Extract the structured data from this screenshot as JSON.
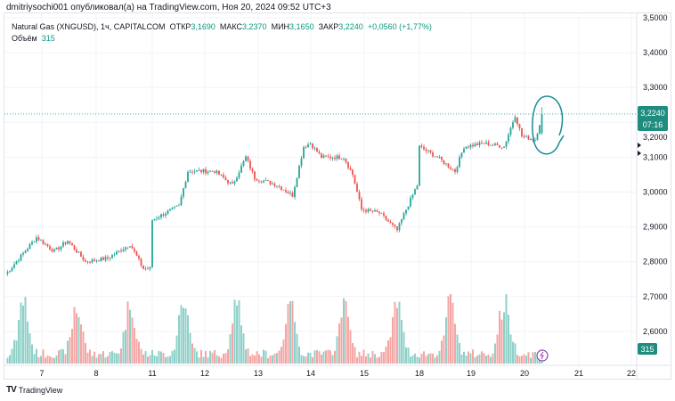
{
  "publisher_line": "dmitriysochi001 опубликовал(а) на TradingView.com, Ноя 20, 2024 09:52 UTC+3",
  "legend": {
    "symbol": "Natural Gas (XNGUSD), 1ч, CAPITALCOM",
    "open_label": "ОТКР",
    "open": "3,1690",
    "high_label": "МАКС",
    "high": "3,2370",
    "low_label": "МИН",
    "low": "3,1650",
    "close_label": "ЗАКР",
    "close": "3,2240",
    "change": "+0,0560 (+1,77%)",
    "volume_label": "Объём",
    "volume": "315"
  },
  "current_price": {
    "price": "3,2240",
    "countdown": "07:16",
    "volume_badge": "315"
  },
  "colors": {
    "up": "#26a69a",
    "down": "#ef5350",
    "up_vol": "#8fd0c8",
    "down_vol": "#f4a6a4",
    "annotation": "#1b8a9a",
    "badge": "#1e8c7e"
  },
  "footer": {
    "brand": "TradingView"
  },
  "chart_data": {
    "type": "candlestick",
    "title": "Natural Gas (XNGUSD), 1ч",
    "y_ticks": [
      "3,5000",
      "3,4000",
      "3,3000",
      "3,2000",
      "3,1000",
      "3,0000",
      "2,9000",
      "2,8000",
      "2,7000",
      "2,6000"
    ],
    "y_values": [
      3.5,
      3.4,
      3.3,
      3.2,
      3.1,
      3.0,
      2.9,
      2.8,
      2.7,
      2.6
    ],
    "x_ticks": [
      "7",
      "8",
      "11",
      "12",
      "13",
      "14",
      "15",
      "18",
      "19",
      "20",
      "21",
      "22"
    ],
    "price_path": [
      [
        1,
        2.77
      ],
      [
        14,
        2.87
      ],
      [
        22,
        2.83
      ],
      [
        28,
        2.86
      ],
      [
        36,
        2.8
      ],
      [
        46,
        2.81
      ],
      [
        56,
        2.85
      ],
      [
        62,
        2.78
      ],
      [
        65,
        2.78
      ],
      [
        66,
        2.92
      ],
      [
        78,
        2.96
      ],
      [
        82,
        3.06
      ],
      [
        94,
        3.06
      ],
      [
        102,
        3.02
      ],
      [
        108,
        3.1
      ],
      [
        112,
        3.04
      ],
      [
        122,
        3.02
      ],
      [
        129,
        2.99
      ],
      [
        134,
        3.13
      ],
      [
        137,
        3.14
      ],
      [
        142,
        3.1
      ],
      [
        152,
        3.1
      ],
      [
        156,
        3.05
      ],
      [
        160,
        2.95
      ],
      [
        168,
        2.94
      ],
      [
        176,
        2.89
      ],
      [
        180,
        2.95
      ],
      [
        185,
        3.02
      ],
      [
        186,
        3.13
      ],
      [
        194,
        3.1
      ],
      [
        202,
        3.06
      ],
      [
        206,
        3.13
      ],
      [
        215,
        3.14
      ],
      [
        224,
        3.13
      ],
      [
        229,
        3.22
      ],
      [
        232,
        3.16
      ],
      [
        238,
        3.15
      ],
      [
        241,
        3.22
      ]
    ],
    "last_price": 3.224
  }
}
